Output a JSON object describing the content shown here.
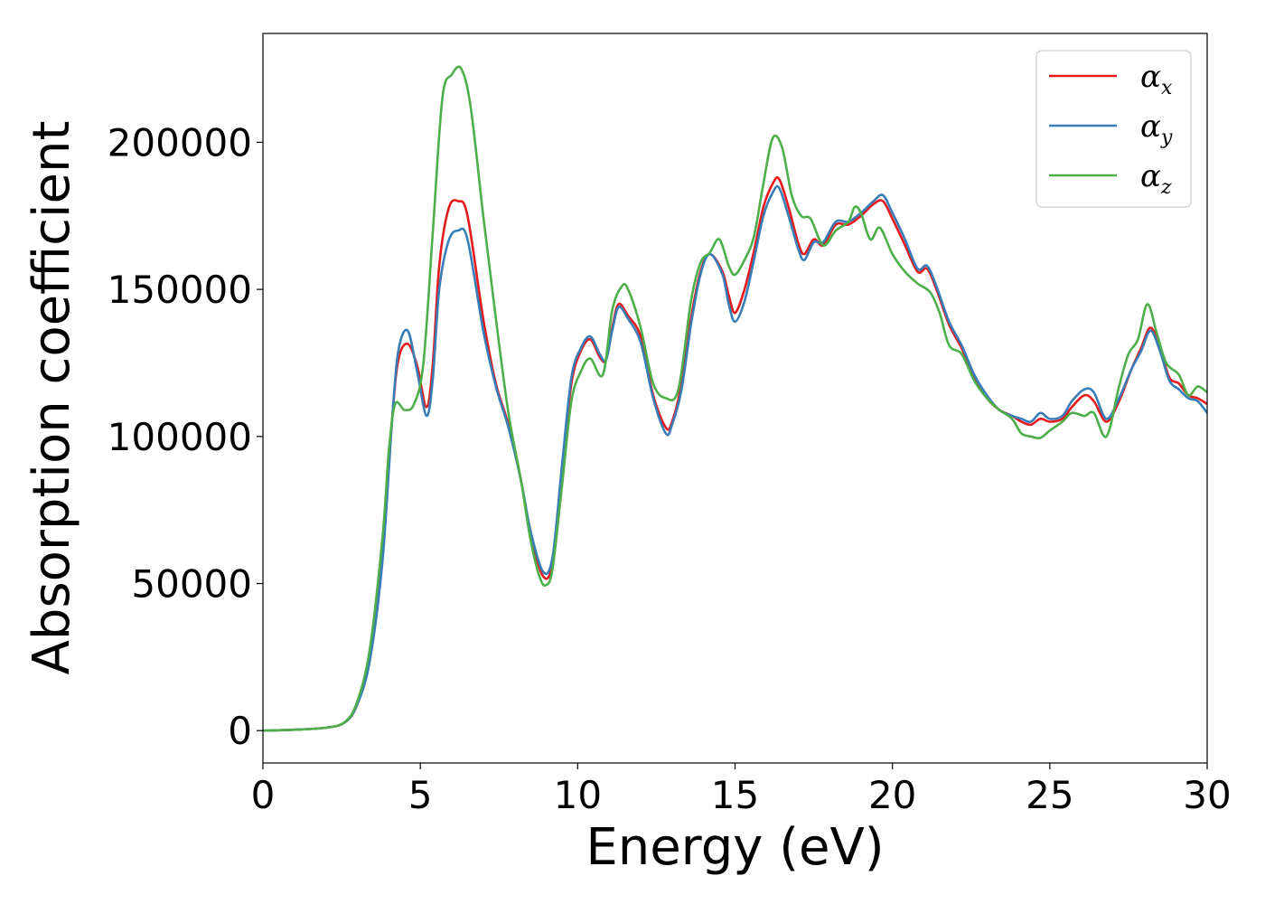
{
  "chart_data": {
    "type": "line",
    "xlabel": "Energy (eV)",
    "ylabel": "Absorption coefficient",
    "xlim": [
      0,
      30
    ],
    "ylim": [
      -11000,
      237000
    ],
    "xticks": [
      0,
      5,
      10,
      15,
      20,
      25,
      30
    ],
    "xtick_labels": [
      "0",
      "5",
      "10",
      "15",
      "20",
      "25",
      "30"
    ],
    "yticks": [
      0,
      50000,
      100000,
      150000,
      200000
    ],
    "ytick_labels": [
      "0",
      "50000",
      "100000",
      "150000",
      "200000"
    ],
    "grid": false,
    "legend_position": "top-right",
    "series": [
      {
        "name": "α",
        "name_sub": "x",
        "color": "#e41a1c",
        "points": [
          [
            0,
            0
          ],
          [
            1,
            300
          ],
          [
            2,
            1000
          ],
          [
            2.6,
            2800
          ],
          [
            3.0,
            9000
          ],
          [
            3.4,
            25000
          ],
          [
            3.8,
            60000
          ],
          [
            4.1,
            105000
          ],
          [
            4.3,
            126000
          ],
          [
            4.6,
            131500
          ],
          [
            4.9,
            124000
          ],
          [
            5.2,
            110000
          ],
          [
            5.4,
            125000
          ],
          [
            5.6,
            158000
          ],
          [
            5.9,
            177500
          ],
          [
            6.2,
            180000
          ],
          [
            6.5,
            175000
          ],
          [
            7.0,
            140000
          ],
          [
            7.4,
            118000
          ],
          [
            7.8,
            104000
          ],
          [
            8.2,
            85000
          ],
          [
            8.5,
            67000
          ],
          [
            8.9,
            52500
          ],
          [
            9.2,
            57000
          ],
          [
            9.5,
            88000
          ],
          [
            9.8,
            118000
          ],
          [
            10.1,
            129000
          ],
          [
            10.4,
            133000
          ],
          [
            10.7,
            127000
          ],
          [
            10.9,
            126000
          ],
          [
            11.1,
            137000
          ],
          [
            11.3,
            145000
          ],
          [
            11.6,
            141000
          ],
          [
            12.0,
            134000
          ],
          [
            12.4,
            114000
          ],
          [
            12.8,
            103000
          ],
          [
            13.0,
            105000
          ],
          [
            13.3,
            118000
          ],
          [
            13.6,
            140000
          ],
          [
            13.9,
            156000
          ],
          [
            14.2,
            162000
          ],
          [
            14.6,
            156000
          ],
          [
            14.8,
            148000
          ],
          [
            15.0,
            142000
          ],
          [
            15.3,
            150000
          ],
          [
            15.6,
            163000
          ],
          [
            15.9,
            178000
          ],
          [
            16.2,
            186000
          ],
          [
            16.4,
            187500
          ],
          [
            16.7,
            178000
          ],
          [
            17.0,
            166000
          ],
          [
            17.2,
            162000
          ],
          [
            17.5,
            167000
          ],
          [
            17.8,
            165000
          ],
          [
            18.2,
            172000
          ],
          [
            18.6,
            172000
          ],
          [
            19.0,
            175000
          ],
          [
            19.4,
            179000
          ],
          [
            19.7,
            180000
          ],
          [
            20.0,
            174000
          ],
          [
            20.4,
            165000
          ],
          [
            20.8,
            156000
          ],
          [
            21.1,
            157000
          ],
          [
            21.4,
            150000
          ],
          [
            21.8,
            138000
          ],
          [
            22.2,
            130000
          ],
          [
            22.6,
            120000
          ],
          [
            23.0,
            113000
          ],
          [
            23.4,
            109000
          ],
          [
            23.8,
            107000
          ],
          [
            24.1,
            105000
          ],
          [
            24.4,
            104000
          ],
          [
            24.7,
            106000
          ],
          [
            25.0,
            105000
          ],
          [
            25.4,
            106000
          ],
          [
            25.7,
            110000
          ],
          [
            26.1,
            114000
          ],
          [
            26.4,
            112000
          ],
          [
            26.8,
            105000
          ],
          [
            27.2,
            112000
          ],
          [
            27.6,
            123000
          ],
          [
            27.9,
            130000
          ],
          [
            28.2,
            137000
          ],
          [
            28.5,
            130000
          ],
          [
            28.8,
            120000
          ],
          [
            29.1,
            118000
          ],
          [
            29.4,
            114000
          ],
          [
            29.7,
            113000
          ],
          [
            30,
            111000
          ]
        ]
      },
      {
        "name": "α",
        "name_sub": "y",
        "color": "#377eb8",
        "points": [
          [
            0,
            0
          ],
          [
            1,
            300
          ],
          [
            2,
            1000
          ],
          [
            2.6,
            2800
          ],
          [
            3.0,
            9000
          ],
          [
            3.4,
            24000
          ],
          [
            3.8,
            58000
          ],
          [
            4.1,
            105000
          ],
          [
            4.3,
            129000
          ],
          [
            4.6,
            136000
          ],
          [
            4.9,
            122000
          ],
          [
            5.2,
            107000
          ],
          [
            5.4,
            120000
          ],
          [
            5.6,
            150000
          ],
          [
            5.9,
            166500
          ],
          [
            6.2,
            170000
          ],
          [
            6.5,
            167000
          ],
          [
            7.0,
            136000
          ],
          [
            7.4,
            117000
          ],
          [
            7.8,
            103000
          ],
          [
            8.2,
            85000
          ],
          [
            8.5,
            68000
          ],
          [
            8.9,
            54000
          ],
          [
            9.2,
            59000
          ],
          [
            9.5,
            90000
          ],
          [
            9.8,
            120000
          ],
          [
            10.1,
            130000
          ],
          [
            10.4,
            134000
          ],
          [
            10.7,
            128000
          ],
          [
            10.9,
            126000
          ],
          [
            11.1,
            136000
          ],
          [
            11.3,
            144000
          ],
          [
            11.6,
            140000
          ],
          [
            12.0,
            132000
          ],
          [
            12.4,
            113000
          ],
          [
            12.8,
            101000
          ],
          [
            13.0,
            104000
          ],
          [
            13.3,
            116000
          ],
          [
            13.6,
            138000
          ],
          [
            13.9,
            155000
          ],
          [
            14.2,
            162000
          ],
          [
            14.6,
            155000
          ],
          [
            14.8,
            145000
          ],
          [
            15.0,
            139000
          ],
          [
            15.3,
            146000
          ],
          [
            15.6,
            160000
          ],
          [
            15.9,
            175000
          ],
          [
            16.2,
            183000
          ],
          [
            16.4,
            184500
          ],
          [
            16.7,
            175000
          ],
          [
            17.0,
            164000
          ],
          [
            17.2,
            160000
          ],
          [
            17.5,
            166000
          ],
          [
            17.8,
            166000
          ],
          [
            18.2,
            173000
          ],
          [
            18.6,
            173000
          ],
          [
            19.0,
            176000
          ],
          [
            19.4,
            180000
          ],
          [
            19.7,
            182000
          ],
          [
            20.0,
            176000
          ],
          [
            20.4,
            167000
          ],
          [
            20.8,
            157000
          ],
          [
            21.1,
            158000
          ],
          [
            21.4,
            151000
          ],
          [
            21.8,
            139000
          ],
          [
            22.2,
            131000
          ],
          [
            22.6,
            121000
          ],
          [
            23.0,
            114000
          ],
          [
            23.4,
            109000
          ],
          [
            23.8,
            107000
          ],
          [
            24.1,
            106000
          ],
          [
            24.4,
            105000
          ],
          [
            24.7,
            108000
          ],
          [
            25.0,
            106000
          ],
          [
            25.4,
            107000
          ],
          [
            25.7,
            112000
          ],
          [
            26.1,
            116000
          ],
          [
            26.4,
            115000
          ],
          [
            26.8,
            106000
          ],
          [
            27.2,
            113000
          ],
          [
            27.6,
            123000
          ],
          [
            27.9,
            129000
          ],
          [
            28.2,
            136000
          ],
          [
            28.5,
            129000
          ],
          [
            28.8,
            119000
          ],
          [
            29.1,
            116000
          ],
          [
            29.4,
            113000
          ],
          [
            29.7,
            112000
          ],
          [
            30,
            108000
          ]
        ]
      },
      {
        "name": "α",
        "name_sub": "z",
        "color": "#4daf4a",
        "points": [
          [
            0,
            0
          ],
          [
            1,
            300
          ],
          [
            2,
            1000
          ],
          [
            2.6,
            2900
          ],
          [
            3.0,
            10000
          ],
          [
            3.4,
            28000
          ],
          [
            3.8,
            66000
          ],
          [
            4.0,
            95000
          ],
          [
            4.2,
            111000
          ],
          [
            4.5,
            109000
          ],
          [
            4.8,
            111000
          ],
          [
            5.1,
            125000
          ],
          [
            5.4,
            170000
          ],
          [
            5.7,
            215000
          ],
          [
            6.0,
            223000
          ],
          [
            6.3,
            225000
          ],
          [
            6.6,
            212000
          ],
          [
            7.0,
            175000
          ],
          [
            7.4,
            140000
          ],
          [
            7.8,
            108000
          ],
          [
            8.2,
            85000
          ],
          [
            8.5,
            65000
          ],
          [
            8.8,
            52000
          ],
          [
            9.0,
            49500
          ],
          [
            9.2,
            55000
          ],
          [
            9.5,
            83000
          ],
          [
            9.8,
            112000
          ],
          [
            10.1,
            122000
          ],
          [
            10.4,
            126500
          ],
          [
            10.8,
            121000
          ],
          [
            11.1,
            143000
          ],
          [
            11.4,
            151000
          ],
          [
            11.6,
            150000
          ],
          [
            12.0,
            137000
          ],
          [
            12.4,
            118000
          ],
          [
            12.8,
            113000
          ],
          [
            13.2,
            116000
          ],
          [
            13.6,
            146000
          ],
          [
            13.9,
            159000
          ],
          [
            14.2,
            162500
          ],
          [
            14.5,
            167000
          ],
          [
            14.8,
            158000
          ],
          [
            15.0,
            155000
          ],
          [
            15.3,
            160000
          ],
          [
            15.6,
            168000
          ],
          [
            15.9,
            186000
          ],
          [
            16.2,
            201500
          ],
          [
            16.5,
            198000
          ],
          [
            16.8,
            182000
          ],
          [
            17.1,
            175000
          ],
          [
            17.4,
            174000
          ],
          [
            17.8,
            165000
          ],
          [
            18.2,
            170000
          ],
          [
            18.6,
            173000
          ],
          [
            18.8,
            178000
          ],
          [
            19.0,
            176000
          ],
          [
            19.3,
            167000
          ],
          [
            19.6,
            171000
          ],
          [
            20.0,
            162000
          ],
          [
            20.4,
            156000
          ],
          [
            20.8,
            152000
          ],
          [
            21.2,
            149000
          ],
          [
            21.5,
            142000
          ],
          [
            21.8,
            131000
          ],
          [
            22.2,
            128000
          ],
          [
            22.6,
            119000
          ],
          [
            23.0,
            113000
          ],
          [
            23.4,
            109000
          ],
          [
            23.8,
            106000
          ],
          [
            24.1,
            101000
          ],
          [
            24.4,
            100000
          ],
          [
            24.7,
            99500
          ],
          [
            25.0,
            102000
          ],
          [
            25.4,
            105000
          ],
          [
            25.7,
            108000
          ],
          [
            26.1,
            107000
          ],
          [
            26.4,
            108000
          ],
          [
            26.8,
            100000
          ],
          [
            27.2,
            117000
          ],
          [
            27.5,
            128000
          ],
          [
            27.8,
            133000
          ],
          [
            28.1,
            145000
          ],
          [
            28.4,
            135000
          ],
          [
            28.7,
            125000
          ],
          [
            29.1,
            121000
          ],
          [
            29.4,
            114000
          ],
          [
            29.7,
            117000
          ],
          [
            30,
            115000
          ]
        ]
      }
    ]
  }
}
